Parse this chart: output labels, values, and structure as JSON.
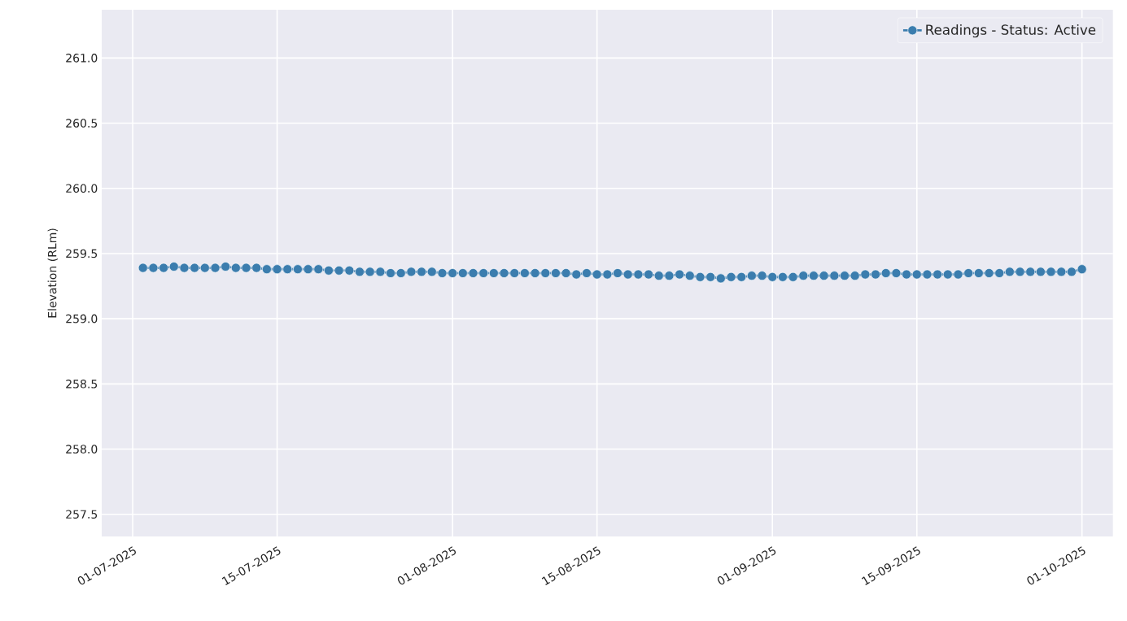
{
  "chart_data": {
    "type": "line",
    "ylabel": "Elevation (RLm)",
    "x": [
      "2025-07-02",
      "2025-07-03",
      "2025-07-04",
      "2025-07-05",
      "2025-07-06",
      "2025-07-07",
      "2025-07-08",
      "2025-07-09",
      "2025-07-10",
      "2025-07-11",
      "2025-07-12",
      "2025-07-13",
      "2025-07-14",
      "2025-07-15",
      "2025-07-16",
      "2025-07-17",
      "2025-07-18",
      "2025-07-19",
      "2025-07-20",
      "2025-07-21",
      "2025-07-22",
      "2025-07-23",
      "2025-07-24",
      "2025-07-25",
      "2025-07-26",
      "2025-07-27",
      "2025-07-28",
      "2025-07-29",
      "2025-07-30",
      "2025-07-31",
      "2025-08-01",
      "2025-08-02",
      "2025-08-03",
      "2025-08-04",
      "2025-08-05",
      "2025-08-06",
      "2025-08-07",
      "2025-08-08",
      "2025-08-09",
      "2025-08-10",
      "2025-08-11",
      "2025-08-12",
      "2025-08-13",
      "2025-08-14",
      "2025-08-15",
      "2025-08-16",
      "2025-08-17",
      "2025-08-18",
      "2025-08-19",
      "2025-08-20",
      "2025-08-21",
      "2025-08-22",
      "2025-08-23",
      "2025-08-24",
      "2025-08-25",
      "2025-08-26",
      "2025-08-27",
      "2025-08-28",
      "2025-08-29",
      "2025-08-30",
      "2025-08-31",
      "2025-09-01",
      "2025-09-02",
      "2025-09-03",
      "2025-09-04",
      "2025-09-05",
      "2025-09-06",
      "2025-09-07",
      "2025-09-08",
      "2025-09-09",
      "2025-09-10",
      "2025-09-11",
      "2025-09-12",
      "2025-09-13",
      "2025-09-14",
      "2025-09-15",
      "2025-09-16",
      "2025-09-17",
      "2025-09-18",
      "2025-09-19",
      "2025-09-20",
      "2025-09-21",
      "2025-09-22",
      "2025-09-23",
      "2025-09-24",
      "2025-09-25",
      "2025-09-26",
      "2025-09-27",
      "2025-09-28",
      "2025-09-29",
      "2025-09-30",
      "2025-10-01"
    ],
    "series": [
      {
        "name": "Readings - Status: Active",
        "color": "#3b7dae",
        "values": [
          259.39,
          259.39,
          259.39,
          259.4,
          259.39,
          259.39,
          259.39,
          259.39,
          259.4,
          259.39,
          259.39,
          259.39,
          259.38,
          259.38,
          259.38,
          259.38,
          259.38,
          259.38,
          259.37,
          259.37,
          259.37,
          259.36,
          259.36,
          259.36,
          259.35,
          259.35,
          259.36,
          259.36,
          259.36,
          259.35,
          259.35,
          259.35,
          259.35,
          259.35,
          259.35,
          259.35,
          259.35,
          259.35,
          259.35,
          259.35,
          259.35,
          259.35,
          259.34,
          259.35,
          259.34,
          259.34,
          259.35,
          259.34,
          259.34,
          259.34,
          259.33,
          259.33,
          259.34,
          259.33,
          259.32,
          259.32,
          259.31,
          259.32,
          259.32,
          259.33,
          259.33,
          259.32,
          259.32,
          259.32,
          259.33,
          259.33,
          259.33,
          259.33,
          259.33,
          259.33,
          259.34,
          259.34,
          259.35,
          259.35,
          259.34,
          259.34,
          259.34,
          259.34,
          259.34,
          259.34,
          259.35,
          259.35,
          259.35,
          259.35,
          259.36,
          259.36,
          259.36,
          259.36,
          259.36,
          259.36,
          259.36,
          259.38
        ]
      }
    ],
    "xlim": [
      "2025-06-28",
      "2025-10-04"
    ],
    "xticks": [
      {
        "value": "2025-07-01",
        "label": "01-07-2025"
      },
      {
        "value": "2025-07-15",
        "label": "15-07-2025"
      },
      {
        "value": "2025-08-01",
        "label": "01-08-2025"
      },
      {
        "value": "2025-08-15",
        "label": "15-08-2025"
      },
      {
        "value": "2025-09-01",
        "label": "01-09-2025"
      },
      {
        "value": "2025-09-15",
        "label": "15-09-2025"
      },
      {
        "value": "2025-10-01",
        "label": "01-10-2025"
      }
    ],
    "ylim": [
      257.33,
      261.37
    ],
    "yticks": [
      {
        "value": 257.5,
        "label": "257.5"
      },
      {
        "value": 258.0,
        "label": "258.0"
      },
      {
        "value": 258.5,
        "label": "258.5"
      },
      {
        "value": 259.0,
        "label": "259.0"
      },
      {
        "value": 259.5,
        "label": "259.5"
      },
      {
        "value": 260.0,
        "label": "260.0"
      },
      {
        "value": 260.5,
        "label": "260.5"
      },
      {
        "value": 261.0,
        "label": "261.0"
      }
    ],
    "grid": true,
    "legend": "top right",
    "marker": "circle",
    "line_style": "solid"
  }
}
